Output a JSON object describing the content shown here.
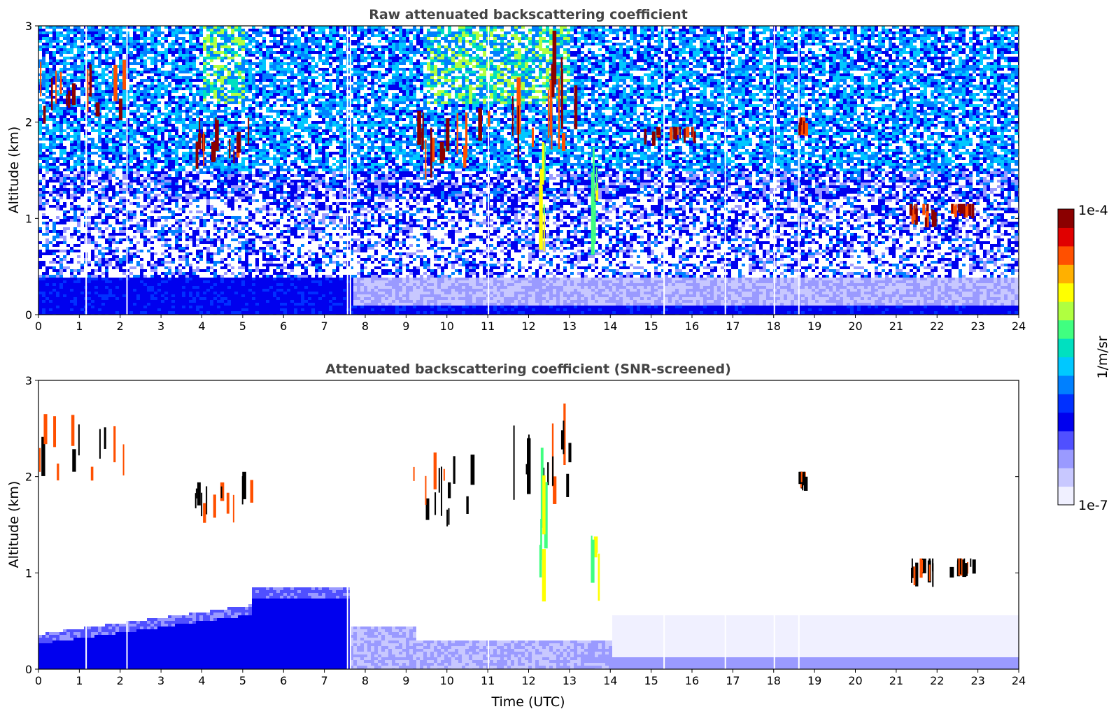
{
  "chart_data": [
    {
      "type": "heatmap",
      "title": "Raw attenuated backscattering coefficient",
      "xlabel": "",
      "ylabel": "Altitude (km)",
      "xlim": [
        0,
        24
      ],
      "ylim": [
        0,
        3
      ],
      "x_ticks": [
        "0",
        "1",
        "2",
        "3",
        "4",
        "5",
        "6",
        "7",
        "8",
        "9",
        "10",
        "11",
        "12",
        "13",
        "14",
        "15",
        "16",
        "17",
        "18",
        "19",
        "20",
        "21",
        "22",
        "23",
        "24"
      ],
      "y_ticks": [
        "0",
        "1",
        "2",
        "3"
      ],
      "background": "noisy signal increasing with altitude; dense low-level aerosol layer below ~0.5 km",
      "features": [
        {
          "kind": "cloud",
          "t_start": 0.0,
          "t_end": 2.2,
          "alt_min": 1.95,
          "alt_max": 2.65,
          "level": "high"
        },
        {
          "kind": "cloud",
          "t_start": 3.75,
          "t_end": 5.2,
          "alt_min": 1.5,
          "alt_max": 2.05,
          "level": "high"
        },
        {
          "kind": "cloud",
          "t_start": 9.1,
          "t_end": 11.0,
          "alt_min": 1.4,
          "alt_max": 2.35,
          "level": "high"
        },
        {
          "kind": "cloud",
          "t_start": 11.5,
          "t_end": 13.2,
          "alt_min": 1.6,
          "alt_max": 2.95,
          "level": "high"
        },
        {
          "kind": "precip",
          "t_start": 12.25,
          "t_end": 12.4,
          "alt_min": 0.65,
          "alt_max": 2.3,
          "level": "mid"
        },
        {
          "kind": "precip",
          "t_start": 13.5,
          "t_end": 13.7,
          "alt_min": 0.6,
          "alt_max": 1.8,
          "level": "mid"
        },
        {
          "kind": "cloud",
          "t_start": 14.2,
          "t_end": 16.2,
          "alt_min": 1.75,
          "alt_max": 1.95,
          "level": "high"
        },
        {
          "kind": "cloud",
          "t_start": 18.6,
          "t_end": 18.75,
          "alt_min": 1.85,
          "alt_max": 2.05,
          "level": "high"
        },
        {
          "kind": "cloud",
          "t_start": 21.3,
          "t_end": 21.9,
          "alt_min": 0.9,
          "alt_max": 1.15,
          "level": "high"
        },
        {
          "kind": "cloud",
          "t_start": 22.3,
          "t_end": 22.9,
          "alt_min": 1.0,
          "alt_max": 1.15,
          "level": "high"
        }
      ]
    },
    {
      "type": "heatmap",
      "title": "Attenuated backscattering coefficient (SNR-screened)",
      "xlabel": "Time (UTC)",
      "ylabel": "Altitude (km)",
      "xlim": [
        0,
        24
      ],
      "ylim": [
        0,
        3
      ],
      "x_ticks": [
        "0",
        "1",
        "2",
        "3",
        "4",
        "5",
        "6",
        "7",
        "8",
        "9",
        "10",
        "11",
        "12",
        "13",
        "14",
        "15",
        "16",
        "17",
        "18",
        "19",
        "20",
        "21",
        "22",
        "23",
        "24"
      ],
      "y_ticks": [
        "0",
        "1",
        "2",
        "3"
      ],
      "background": "white where screened; boundary layer blue up to ~0.4-0.9 km from 0-9 UTC, pale layer ~0.6 km after 14 UTC",
      "features": [
        {
          "kind": "cloud",
          "t_start": 0.0,
          "t_end": 2.2,
          "alt_min": 1.95,
          "alt_max": 2.65,
          "level": "high"
        },
        {
          "kind": "cloud",
          "t_start": 3.75,
          "t_end": 5.2,
          "alt_min": 1.5,
          "alt_max": 2.05,
          "level": "high"
        },
        {
          "kind": "cloud",
          "t_start": 9.1,
          "t_end": 11.0,
          "alt_min": 1.4,
          "alt_max": 2.35,
          "level": "high"
        },
        {
          "kind": "cloud",
          "t_start": 11.5,
          "t_end": 13.2,
          "alt_min": 1.6,
          "alt_max": 2.95,
          "level": "high"
        },
        {
          "kind": "precip",
          "t_start": 12.25,
          "t_end": 12.4,
          "alt_min": 0.65,
          "alt_max": 2.3,
          "level": "mid"
        },
        {
          "kind": "precip",
          "t_start": 13.5,
          "t_end": 13.7,
          "alt_min": 0.6,
          "alt_max": 1.8,
          "level": "mid"
        },
        {
          "kind": "cloud",
          "t_start": 18.6,
          "t_end": 18.75,
          "alt_min": 1.85,
          "alt_max": 2.05,
          "level": "high"
        },
        {
          "kind": "cloud",
          "t_start": 21.3,
          "t_end": 21.9,
          "alt_min": 0.85,
          "alt_max": 1.15,
          "level": "high"
        },
        {
          "kind": "cloud",
          "t_start": 22.3,
          "t_end": 22.9,
          "alt_min": 0.95,
          "alt_max": 1.15,
          "level": "high"
        }
      ]
    }
  ],
  "colorbar": {
    "max_label": "1e-4",
    "min_label": "1e-7",
    "label": "1/m/sr",
    "scale": "log",
    "colors": [
      "#f0f0ff",
      "#c8c8ff",
      "#9a9aff",
      "#5050ff",
      "#0000ee",
      "#0030ff",
      "#0080ff",
      "#00c8ff",
      "#00e0c0",
      "#40ff80",
      "#b0ff40",
      "#ffff00",
      "#ffb000",
      "#ff5000",
      "#e00000",
      "#8b0000"
    ]
  }
}
